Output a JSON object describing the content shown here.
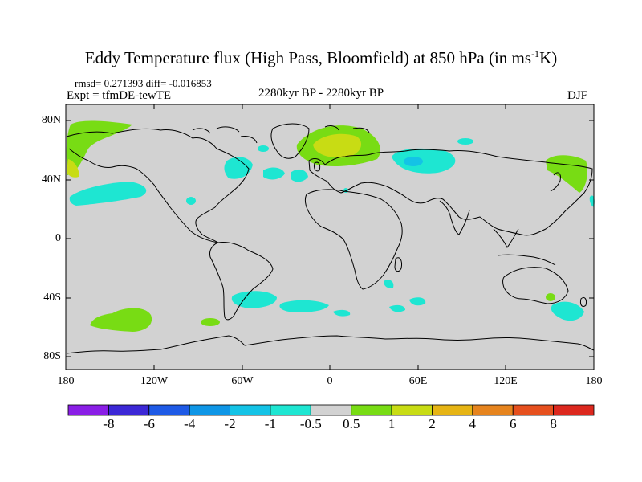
{
  "title": {
    "text": "Eddy Temperature flux (High Pass, Bloomfield) at 850 hPa (in ms",
    "sup": "-1",
    "tail": "K)"
  },
  "stats": "rmsd= 0.271393 diff= -0.016853",
  "expt": "Expt = tfmDE-tewTE",
  "period": "2280kyr BP - 2280kyr BP",
  "season": "DJF",
  "lat_labels": [
    "80N",
    "40N",
    "0",
    "40S",
    "80S"
  ],
  "lon_labels": [
    "180",
    "120W",
    "60W",
    "0",
    "60E",
    "120E",
    "180"
  ],
  "colorbar": {
    "labels": [
      "-8",
      "-6",
      "-4",
      "-2",
      "-1",
      "-0.5",
      "0.5",
      "1",
      "2",
      "4",
      "6",
      "8"
    ],
    "colors": [
      "#8a1ee6",
      "#3c28d6",
      "#1e5ae6",
      "#0f96e6",
      "#14c3e6",
      "#1ee6d2",
      "#d2d2d2",
      "#78dc14",
      "#c8dc14",
      "#e6b414",
      "#e6841e",
      "#e6501e",
      "#dc281e"
    ]
  },
  "colors": {
    "land_bg": "#d2d2d2",
    "cyan": "#1ee6d2",
    "green": "#78dc14",
    "yellow": "#c8dc14",
    "blue": "#14c3e6"
  }
}
